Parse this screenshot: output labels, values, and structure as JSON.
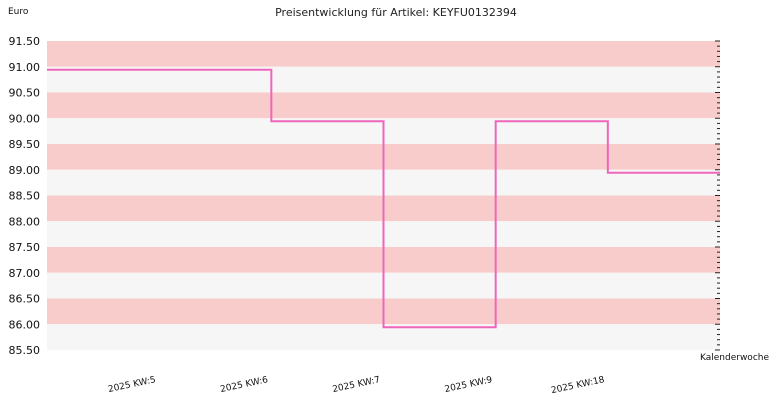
{
  "chart_data": {
    "type": "line",
    "title": "Preisentwicklung für Artikel: KEYFU0132394",
    "ylabel": "Euro",
    "xlabel": "Kalenderwoche",
    "categories": [
      "2025 KW:5",
      "2025 KW:6",
      "2025 KW:7",
      "2025 KW:9",
      "2025 KW:18"
    ],
    "y_ticks": [
      "85.50",
      "86.00",
      "86.50",
      "87.00",
      "87.50",
      "88.00",
      "88.50",
      "89.00",
      "89.50",
      "90.00",
      "90.50",
      "91.00",
      "91.50"
    ],
    "ylim": [
      85.5,
      91.5
    ],
    "step": true,
    "series": [
      {
        "values": [
          90.94,
          89.94,
          85.94,
          89.94,
          88.94
        ],
        "color": "#ee66bb"
      }
    ],
    "grid": true,
    "band_colors": [
      "#f9cccc",
      "#f6f6f6"
    ]
  }
}
